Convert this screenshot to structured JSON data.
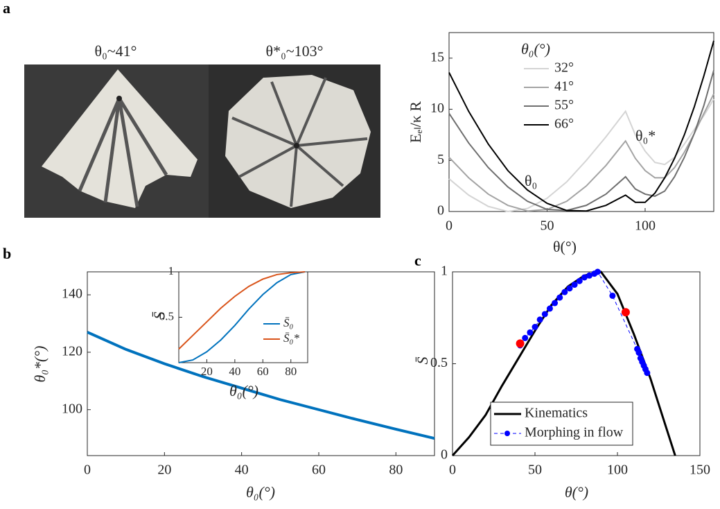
{
  "panel_labels": [
    "a",
    "b",
    "c"
  ],
  "photos": {
    "captions": [
      "θ₀~41°",
      "θ*₀~103°"
    ]
  },
  "chart_data": [
    {
      "type": "line",
      "y_label": "Eₑₗ/κ R",
      "x_label": "θ(°)",
      "legend_title": "θ₀(°)",
      "annotations": [
        "θ₀",
        "θ₀*"
      ],
      "x": [
        0,
        10,
        20,
        30,
        40,
        50,
        60,
        70,
        80,
        90,
        95,
        100,
        105,
        110,
        115,
        120,
        125,
        130,
        135
      ],
      "series": [
        {
          "name": "32°",
          "color": "#d4d4d4",
          "values": [
            3.2,
            1.6,
            0.5,
            0.0,
            0.3,
            1.3,
            2.9,
            5.0,
            7.3,
            9.8,
            7.5,
            5.9,
            4.8,
            4.6,
            5.3,
            6.6,
            8.0,
            9.4,
            11.0
          ]
        },
        {
          "name": "41°",
          "color": "#a3a3a3",
          "values": [
            5.3,
            3.3,
            1.7,
            0.6,
            0.05,
            0.2,
            1.0,
            2.5,
            4.5,
            6.9,
            5.2,
            4.0,
            3.3,
            3.3,
            4.3,
            5.8,
            7.6,
            9.6,
            11.5
          ]
        },
        {
          "name": "55°",
          "color": "#6e6e6e",
          "values": [
            9.6,
            6.7,
            4.3,
            2.4,
            1.0,
            0.2,
            0.1,
            0.6,
            1.7,
            3.4,
            2.2,
            1.7,
            1.5,
            2.0,
            3.4,
            5.3,
            7.6,
            10.4,
            13.8
          ]
        },
        {
          "name": "66°",
          "color": "#000000",
          "values": [
            13.6,
            9.8,
            6.6,
            4.0,
            2.1,
            0.8,
            0.1,
            0.05,
            0.6,
            1.6,
            0.9,
            0.9,
            1.8,
            3.3,
            5.2,
            7.5,
            10.2,
            13.3,
            16.7
          ]
        }
      ],
      "xlim": [
        0,
        135
      ],
      "ylim": [
        0,
        17.5
      ],
      "xticks": [
        0,
        50,
        100
      ],
      "yticks": [
        0,
        5,
        10,
        15
      ]
    },
    {
      "type": "line",
      "y_label": "θ₀*(°)",
      "x_label": "θ₀(°)",
      "x": [
        0,
        10,
        20,
        30,
        40,
        50,
        60,
        70,
        80,
        90
      ],
      "series": [
        {
          "color": "#0072bd",
          "values": [
            127,
            121,
            116,
            111.5,
            107.5,
            103.5,
            100,
            96.5,
            93.2,
            90
          ]
        }
      ],
      "xlim": [
        0,
        90
      ],
      "ylim": [
        84,
        148
      ],
      "xticks": [
        0,
        20,
        40,
        60,
        80
      ],
      "yticks": [
        100,
        120,
        140
      ]
    },
    {
      "type": "line",
      "y_label": "S̄",
      "x_label": "θ₀(°)",
      "x": [
        0,
        10,
        20,
        30,
        40,
        50,
        60,
        70,
        80,
        90
      ],
      "series": [
        {
          "name": "S̄₀",
          "color": "#0072bd",
          "values": [
            0,
            0.03,
            0.12,
            0.25,
            0.41,
            0.59,
            0.75,
            0.88,
            0.97,
            1.0
          ]
        },
        {
          "name": "S̄₀*",
          "color": "#d95319",
          "values": [
            0.15,
            0.3,
            0.45,
            0.6,
            0.73,
            0.84,
            0.92,
            0.97,
            0.99,
            1.0
          ]
        }
      ],
      "xlim": [
        0,
        92
      ],
      "ylim": [
        0,
        1
      ],
      "xticks": [
        20,
        40,
        60,
        80
      ],
      "yticks": [
        0.5,
        1
      ]
    },
    {
      "type": "line",
      "y_label": "S̄",
      "x_label": "θ(°)",
      "series": [
        {
          "name": "Kinematics",
          "color": "#000000",
          "x": [
            0,
            10,
            20,
            30,
            40,
            50,
            60,
            70,
            80,
            90,
            100,
            110,
            120,
            130,
            135
          ],
          "values": [
            0,
            0.1,
            0.22,
            0.38,
            0.53,
            0.68,
            0.82,
            0.92,
            0.98,
            1.0,
            0.88,
            0.66,
            0.42,
            0.14,
            0
          ]
        },
        {
          "name": "Morphing in flow",
          "color": "#0000ff",
          "dashed": true,
          "marker": true,
          "x": [
            41,
            44,
            47,
            50,
            53,
            56,
            59,
            62,
            65,
            68,
            71,
            74,
            77,
            80,
            83,
            86,
            88,
            97,
            112,
            113,
            114,
            115,
            116,
            117,
            118
          ],
          "values": [
            0.6,
            0.64,
            0.67,
            0.7,
            0.74,
            0.77,
            0.8,
            0.83,
            0.86,
            0.89,
            0.91,
            0.93,
            0.95,
            0.97,
            0.98,
            0.99,
            1.0,
            0.87,
            0.58,
            0.56,
            0.53,
            0.51,
            0.49,
            0.47,
            0.45
          ]
        },
        {
          "color": "#ff0000",
          "line": false,
          "marker": true,
          "x": [
            41,
            105
          ],
          "values": [
            0.61,
            0.78
          ]
        }
      ],
      "xlim": [
        0,
        150
      ],
      "ylim": [
        0,
        1
      ],
      "xticks": [
        0,
        50,
        100,
        150
      ],
      "yticks": [
        0,
        0.5,
        1
      ]
    }
  ]
}
